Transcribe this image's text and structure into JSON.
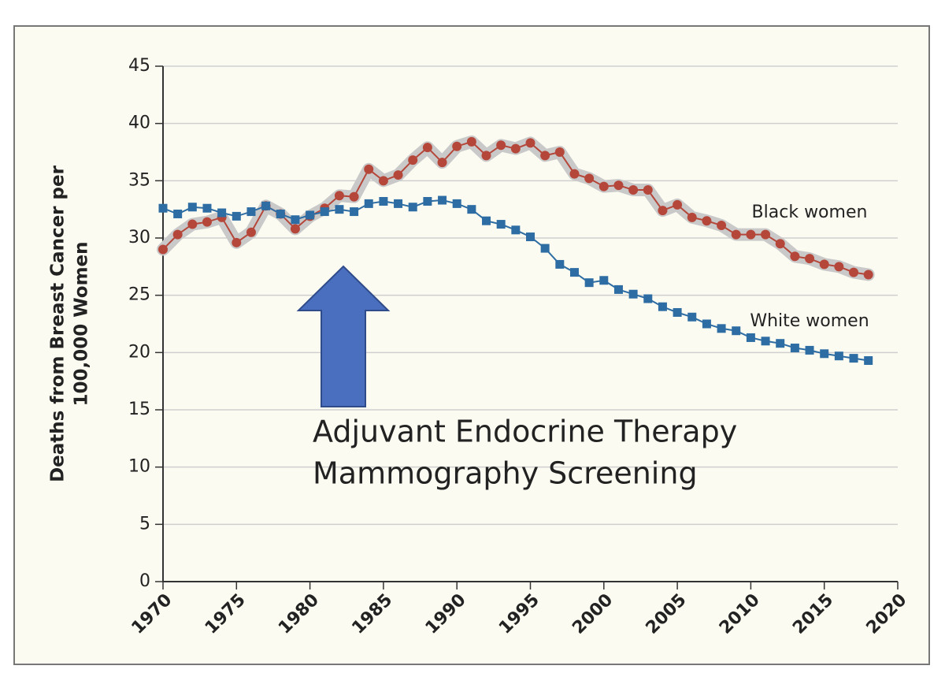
{
  "chart_data": {
    "type": "line",
    "ylabel": [
      "Deaths from Breast Cancer per",
      "100,000 Women"
    ],
    "x": [
      1970,
      1971,
      1972,
      1973,
      1974,
      1975,
      1976,
      1977,
      1978,
      1979,
      1980,
      1981,
      1982,
      1983,
      1984,
      1985,
      1986,
      1987,
      1988,
      1989,
      1990,
      1991,
      1992,
      1993,
      1994,
      1995,
      1996,
      1997,
      1998,
      1999,
      2000,
      2001,
      2002,
      2003,
      2004,
      2005,
      2006,
      2007,
      2008,
      2009,
      2010,
      2011,
      2012,
      2013,
      2014,
      2015,
      2016,
      2017,
      2018
    ],
    "series": [
      {
        "name": "Black women",
        "color": "#b5473a",
        "values": [
          29.0,
          30.3,
          31.2,
          31.4,
          31.8,
          29.6,
          30.5,
          32.8,
          32.1,
          30.8,
          31.9,
          32.6,
          33.7,
          33.6,
          36.0,
          35.0,
          35.5,
          36.8,
          37.9,
          36.6,
          38.0,
          38.4,
          37.2,
          38.1,
          37.8,
          38.3,
          37.2,
          37.5,
          35.6,
          35.2,
          34.5,
          34.6,
          34.2,
          34.2,
          32.4,
          32.9,
          31.8,
          31.5,
          31.1,
          30.3,
          30.3,
          30.3,
          29.5,
          28.4,
          28.2,
          27.7,
          27.5,
          27.0,
          26.8
        ]
      },
      {
        "name": "White women",
        "color": "#2e6da4",
        "values": [
          32.6,
          32.1,
          32.7,
          32.6,
          32.2,
          31.9,
          32.3,
          32.8,
          32.1,
          31.6,
          32.0,
          32.3,
          32.5,
          32.3,
          33.0,
          33.2,
          33.0,
          32.7,
          33.2,
          33.3,
          33.0,
          32.5,
          31.5,
          31.2,
          30.7,
          30.1,
          29.1,
          27.7,
          27.0,
          26.1,
          26.3,
          25.5,
          25.1,
          24.7,
          24.0,
          23.5,
          23.1,
          22.5,
          22.1,
          21.9,
          21.3,
          21.0,
          20.8,
          20.4,
          20.2,
          19.9,
          19.7,
          19.5,
          19.3
        ]
      }
    ],
    "annotations": [
      "Adjuvant Endocrine Therapy",
      "Mammography Screening"
    ],
    "xlim": [
      1970,
      2020
    ],
    "xticks": [
      1970,
      1975,
      1980,
      1985,
      1990,
      1995,
      2000,
      2005,
      2010,
      2015,
      2020
    ],
    "ylim": [
      0,
      45
    ],
    "yticks": [
      0,
      5,
      10,
      15,
      20,
      25,
      30,
      35,
      40,
      45
    ],
    "grid": true
  }
}
